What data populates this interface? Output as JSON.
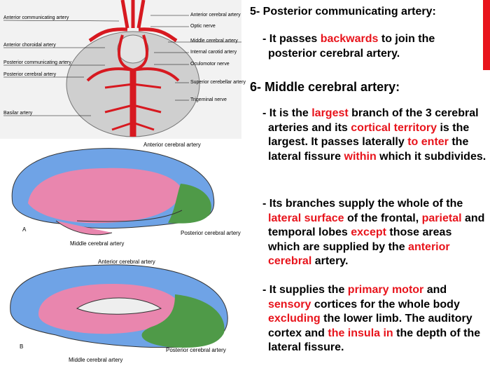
{
  "diagram": {
    "top_labels_left": [
      "Anterior communicating artery",
      "Anterior choroidal artery",
      "Posterior communicating artery",
      "Posterior cerebral artery",
      "Basilar artery"
    ],
    "top_labels_right": [
      "Anterior cerebral artery",
      "Optic nerve",
      "Middle cerebral artery",
      "Internal carotid artery",
      "Oculomotor nerve",
      "Superior cerebellar artery",
      "Trigeminal nerve"
    ],
    "lateral_view": {
      "letter": "A",
      "labels": [
        "Anterior cerebral artery",
        "Middle cerebral artery",
        "Posterior cerebral artery"
      ]
    },
    "medial_view": {
      "letter": "B",
      "labels": [
        "Anterior cerebral artery",
        "Middle cerebral artery",
        "Posterior cerebral artery"
      ]
    }
  },
  "text_panel": {
    "sections": [
      {
        "heading": "5- Posterior communicating artery:",
        "paragraphs": [
          [
            {
              "text": "- It passes "
            },
            {
              "text": "backwards",
              "highlight": true
            },
            {
              "text": " to join the posterior cerebral artery."
            }
          ]
        ]
      },
      {
        "heading": "6-  Middle cerebral artery:",
        "paragraphs": [
          [
            {
              "text": "- It is the "
            },
            {
              "text": "largest",
              "highlight": true
            },
            {
              "text": " branch of the 3 cerebral arteries and its "
            },
            {
              "text": "cortical territory",
              "highlight": true
            },
            {
              "text": " is the largest. It passes laterally "
            },
            {
              "text": "to enter",
              "highlight": true
            },
            {
              "text": " the lateral fissure "
            },
            {
              "text": "within",
              "highlight": true
            },
            {
              "text": " which it subdivides."
            }
          ],
          [
            {
              "text": "- Its branches supply the whole of the "
            },
            {
              "text": "lateral surface",
              "highlight": true
            },
            {
              "text": " of the frontal, "
            },
            {
              "text": "parietal",
              "highlight": true
            },
            {
              "text": " and temporal lobes "
            },
            {
              "text": "except",
              "highlight": true
            },
            {
              "text": " those areas which are supplied by the "
            },
            {
              "text": "anterior cerebral",
              "highlight": true
            },
            {
              "text": " artery."
            }
          ],
          [
            {
              "text": "- It supplies the "
            },
            {
              "text": "primary motor",
              "highlight": true
            },
            {
              "text": " and "
            },
            {
              "text": "sensory",
              "highlight": true
            },
            {
              "text": " cortices for the whole body "
            },
            {
              "text": "excluding",
              "highlight": true
            },
            {
              "text": " the lower limb. The auditory cortex and "
            },
            {
              "text": "the insula in",
              "highlight": true
            },
            {
              "text": " the depth of the lateral fissure."
            }
          ]
        ]
      }
    ]
  }
}
